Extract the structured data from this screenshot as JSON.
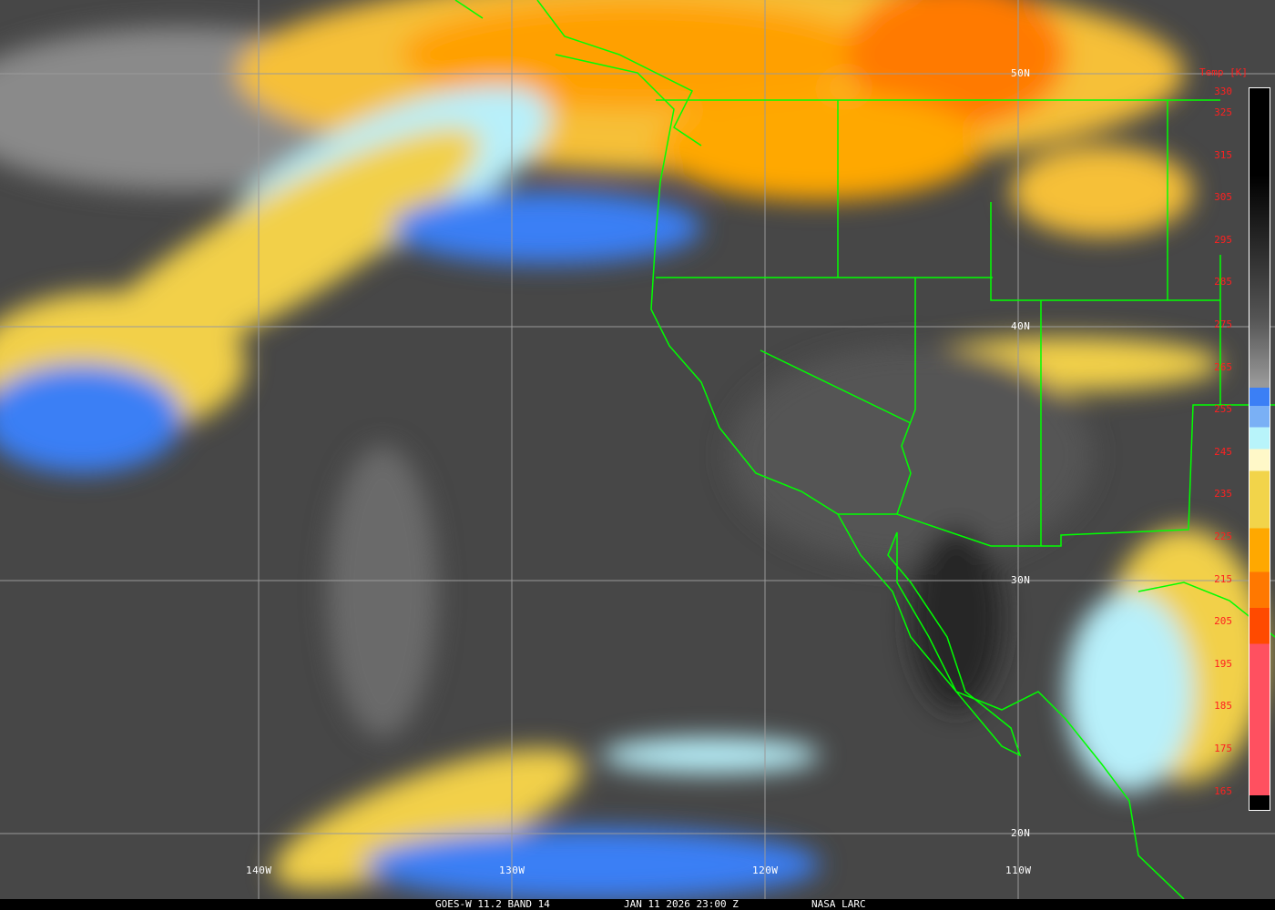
{
  "image": {
    "type": "GOES-W infrared satellite map",
    "background_color": "#474747",
    "border_color": "#00ff00",
    "grid_color": "#9a9a9a"
  },
  "grid_labels": {
    "lat": [
      "50N",
      "40N",
      "30N",
      "20N"
    ],
    "lon": [
      "140W",
      "130W",
      "120W",
      "110W"
    ]
  },
  "colorbar": {
    "title": "Temp [K]",
    "ticks": [
      "330",
      "325",
      "315",
      "305",
      "295",
      "285",
      "275",
      "265",
      "255",
      "245",
      "235",
      "225",
      "215",
      "205",
      "195",
      "185",
      "175",
      "165"
    ],
    "colors": [
      "#000000",
      "#2a2a2a",
      "#555555",
      "#999999",
      "#3b7ff5",
      "#7ab0f5",
      "#b8f4fa",
      "#fff8c8",
      "#f2d44a",
      "#ffa800",
      "#ff7800",
      "#ff4a00",
      "#ff5060"
    ]
  },
  "caption": {
    "source": "GOES-W 11.2 BAND 14",
    "datetime": "JAN 11 2026 23:00 Z",
    "credit": "NASA LARC"
  }
}
